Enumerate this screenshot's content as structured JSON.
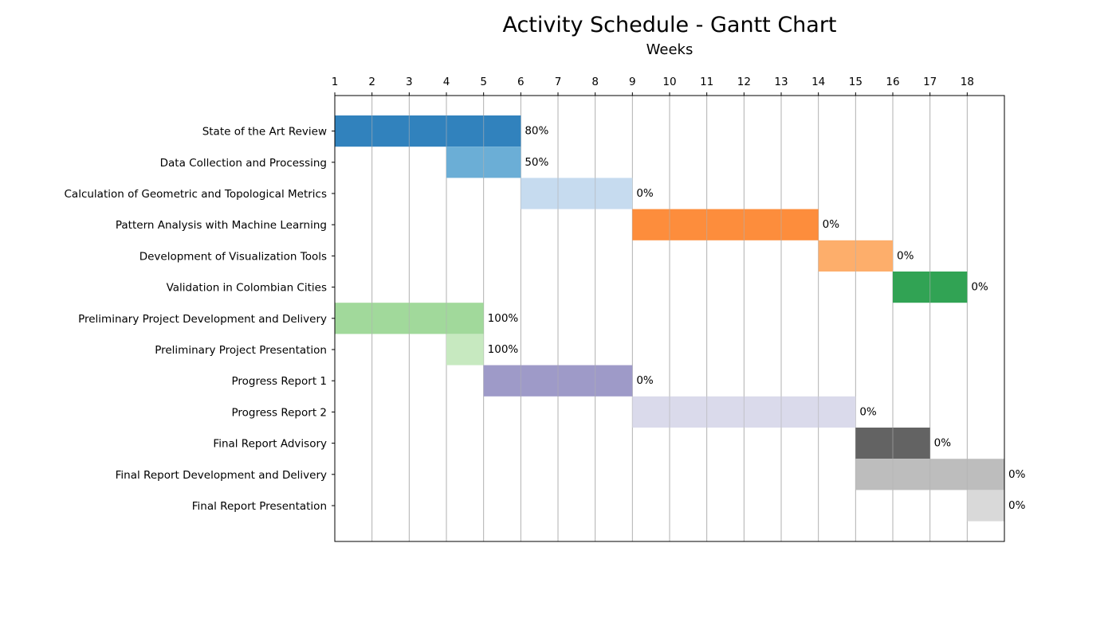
{
  "chart_data": {
    "type": "bar",
    "orientation": "horizontal-gantt",
    "title": "Activity Schedule - Gantt Chart",
    "xlabel": "Weeks",
    "ylabel": "",
    "x_axis_position": "top",
    "x_ticks": [
      1,
      2,
      3,
      4,
      5,
      6,
      7,
      8,
      9,
      10,
      11,
      12,
      13,
      14,
      15,
      16,
      17,
      18
    ],
    "xlim": [
      1,
      19
    ],
    "grid": "vertical",
    "tasks": [
      {
        "name": "State of the Art Review",
        "start": 1,
        "end": 6,
        "progress": "80%",
        "color": "#3182bd"
      },
      {
        "name": "Data Collection and Processing",
        "start": 4,
        "end": 6,
        "progress": "50%",
        "color": "#6baed6"
      },
      {
        "name": "Calculation of Geometric and Topological Metrics",
        "start": 6,
        "end": 9,
        "progress": "0%",
        "color": "#c6dbef"
      },
      {
        "name": "Pattern Analysis with Machine Learning",
        "start": 9,
        "end": 14,
        "progress": "0%",
        "color": "#fd8d3c"
      },
      {
        "name": "Development of Visualization Tools",
        "start": 14,
        "end": 16,
        "progress": "0%",
        "color": "#fdae6b"
      },
      {
        "name": "Validation in Colombian Cities",
        "start": 16,
        "end": 18,
        "progress": "0%",
        "color": "#31a354"
      },
      {
        "name": "Preliminary Project Development and Delivery",
        "start": 1,
        "end": 5,
        "progress": "100%",
        "color": "#a1d99b"
      },
      {
        "name": "Preliminary Project Presentation",
        "start": 4,
        "end": 5,
        "progress": "100%",
        "color": "#c7e9c0"
      },
      {
        "name": "Progress Report 1",
        "start": 5,
        "end": 9,
        "progress": "0%",
        "color": "#9e9ac8"
      },
      {
        "name": "Progress Report 2",
        "start": 9,
        "end": 15,
        "progress": "0%",
        "color": "#dadaeb"
      },
      {
        "name": "Final Report Advisory",
        "start": 15,
        "end": 17,
        "progress": "0%",
        "color": "#636363"
      },
      {
        "name": "Final Report Development and Delivery",
        "start": 15,
        "end": 19,
        "progress": "0%",
        "color": "#bdbdbd"
      },
      {
        "name": "Final Report Presentation",
        "start": 18,
        "end": 19,
        "progress": "0%",
        "color": "#d9d9d9"
      }
    ]
  }
}
